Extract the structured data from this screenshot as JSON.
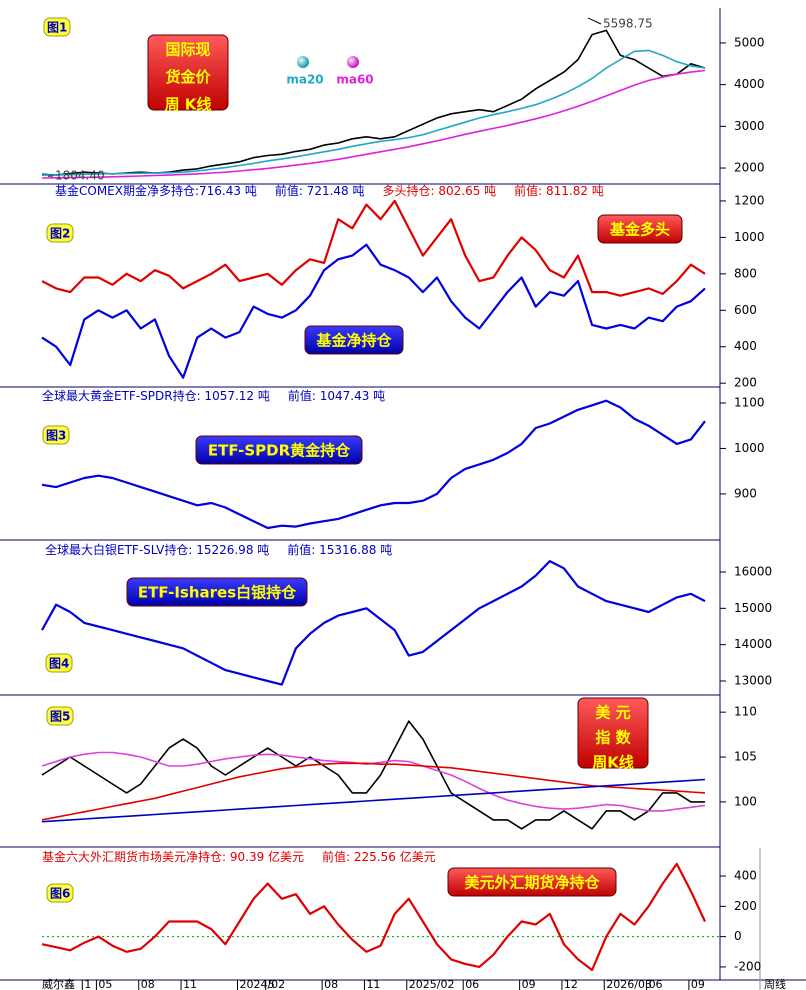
{
  "brand": "威尔鑫",
  "x_axis": {
    "label": "周线",
    "categories": [
      null,
      null,
      null,
      "1",
      "05",
      null,
      null,
      "08",
      null,
      null,
      "11",
      null,
      null,
      null,
      "2024/02",
      null,
      "5",
      null,
      null,
      null,
      "08",
      null,
      null,
      "11",
      null,
      null,
      "2025/02",
      null,
      null,
      null,
      "06",
      null,
      null,
      null,
      "09",
      null,
      null,
      "12",
      null,
      null,
      "2026/03",
      null,
      null,
      "06",
      null,
      null,
      "09",
      null
    ]
  },
  "chart_data": [
    {
      "type": "line",
      "badge": "图1",
      "title_lines": [
        "国际现",
        "货金价",
        "周 K线"
      ],
      "ylim": [
        1665,
        5790
      ],
      "yticks": [
        2000,
        3000,
        4000,
        5000
      ],
      "extremes": {
        "values": [
          5598.75,
          1804.4
        ],
        "value_labels": [
          "5598.75",
          "1804.40"
        ]
      },
      "series": [
        {
          "color": "#000000",
          "values": [
            1850,
            1830,
            1870,
            1900,
            1880,
            1860,
            1880,
            1900,
            1880,
            1900,
            1950,
            1980,
            2050,
            2100,
            2150,
            2250,
            2300,
            2330,
            2400,
            2450,
            2550,
            2600,
            2700,
            2750,
            2700,
            2750,
            2900,
            3050,
            3200,
            3300,
            3350,
            3400,
            3350,
            3500,
            3650,
            3900,
            4100,
            4300,
            4600,
            5200,
            5300,
            4700,
            4600,
            4400,
            4200,
            4250,
            4500,
            4400
          ]
        },
        {
          "name": "ma20",
          "color": "#20a8c8",
          "values": [
            1830,
            1835,
            1840,
            1850,
            1860,
            1865,
            1870,
            1875,
            1880,
            1885,
            1900,
            1930,
            1970,
            2010,
            2060,
            2110,
            2170,
            2220,
            2270,
            2330,
            2390,
            2450,
            2520,
            2580,
            2640,
            2680,
            2730,
            2800,
            2900,
            3000,
            3100,
            3200,
            3280,
            3350,
            3430,
            3520,
            3640,
            3780,
            3950,
            4150,
            4400,
            4600,
            4800,
            4820,
            4700,
            4550,
            4450,
            4400
          ]
        },
        {
          "name": "ma60",
          "color": "#e020e0",
          "values": [
            1760,
            1765,
            1770,
            1775,
            1780,
            1790,
            1800,
            1810,
            1820,
            1830,
            1845,
            1860,
            1880,
            1900,
            1930,
            1960,
            1990,
            2030,
            2070,
            2110,
            2160,
            2210,
            2270,
            2330,
            2390,
            2450,
            2510,
            2580,
            2650,
            2730,
            2810,
            2880,
            2950,
            3020,
            3100,
            3180,
            3270,
            3370,
            3480,
            3600,
            3730,
            3860,
            3990,
            4100,
            4180,
            4250,
            4300,
            4340
          ]
        }
      ]
    },
    {
      "type": "line",
      "badge": "图2",
      "header": [
        {
          "text": "基金COMEX期金净多持仓:716.43  吨",
          "color": "#0000c0"
        },
        {
          "text": "前值: 721.48  吨",
          "color": "#0000c0"
        },
        {
          "text": "多头持仓: 802.65  吨",
          "color": "#e00000"
        },
        {
          "text": "前值: 811.82  吨",
          "color": "#e00000"
        }
      ],
      "ylim": [
        190,
        1260
      ],
      "yticks": [
        200,
        400,
        600,
        800,
        1000,
        1200
      ],
      "series": [
        {
          "name": "基金多头",
          "color": "#e00000",
          "values": [
            760,
            720,
            700,
            780,
            780,
            740,
            800,
            760,
            820,
            790,
            720,
            760,
            800,
            850,
            760,
            780,
            800,
            740,
            820,
            880,
            860,
            1100,
            1050,
            1180,
            1100,
            1200,
            1050,
            900,
            1000,
            1100,
            900,
            760,
            780,
            900,
            1000,
            930,
            820,
            780,
            900,
            700,
            700,
            680,
            700,
            720,
            690,
            760,
            850,
            800
          ]
        },
        {
          "name": "基金净持仓",
          "color": "#0000e0",
          "values": [
            450,
            400,
            300,
            550,
            600,
            560,
            600,
            500,
            550,
            350,
            230,
            450,
            500,
            450,
            480,
            620,
            580,
            560,
            600,
            680,
            820,
            880,
            900,
            960,
            850,
            820,
            780,
            700,
            780,
            650,
            560,
            500,
            600,
            700,
            780,
            620,
            700,
            680,
            760,
            520,
            500,
            520,
            500,
            560,
            540,
            620,
            650,
            720
          ]
        }
      ]
    },
    {
      "type": "line",
      "badge": "图3",
      "header": [
        {
          "text": "全球最大黄金ETF-SPDR持仓: 1057.12 吨",
          "color": "#0000c0"
        },
        {
          "text": "前值:  1047.43 吨",
          "color": "#0000c0"
        }
      ],
      "ylim": [
        803,
        1133
      ],
      "yticks": [
        900,
        1000,
        1100
      ],
      "series": [
        {
          "name": "ETF-SPDR黄金持仓",
          "color": "#0000e0",
          "values": [
            920,
            915,
            925,
            935,
            940,
            935,
            925,
            915,
            905,
            895,
            885,
            875,
            880,
            870,
            855,
            840,
            825,
            830,
            828,
            835,
            840,
            845,
            855,
            865,
            875,
            880,
            880,
            885,
            900,
            935,
            955,
            965,
            975,
            990,
            1010,
            1045,
            1055,
            1070,
            1085,
            1095,
            1105,
            1090,
            1065,
            1050,
            1030,
            1010,
            1020,
            1060
          ]
        }
      ]
    },
    {
      "type": "line",
      "badge": "图4",
      "header": [
        {
          "text": "全球最大白银ETF-SLV持仓: 15226.98 吨",
          "color": "#0000c0"
        },
        {
          "text": "前值: 15316.88 吨",
          "color": "#0000c0"
        }
      ],
      "ylim": [
        12670,
        16880
      ],
      "yticks": [
        13000,
        14000,
        15000,
        16000
      ],
      "series": [
        {
          "name": "ETF-Ishares白银持仓",
          "color": "#0000e0",
          "values": [
            14400,
            15100,
            14900,
            14600,
            14500,
            14400,
            14300,
            14200,
            14100,
            14000,
            13900,
            13700,
            13500,
            13300,
            13200,
            13100,
            13000,
            12900,
            13900,
            14300,
            14600,
            14800,
            14900,
            15000,
            14700,
            14400,
            13700,
            13800,
            14100,
            14400,
            14700,
            15000,
            15200,
            15400,
            15600,
            15900,
            16300,
            16100,
            15600,
            15400,
            15200,
            15100,
            15000,
            14900,
            15100,
            15300,
            15400,
            15200
          ]
        }
      ]
    },
    {
      "type": "line",
      "badge": "图5",
      "title_lines": [
        "美 元",
        "指 数",
        "周K线"
      ],
      "ylim": [
        95.2,
        111.8
      ],
      "yticks": [
        100,
        105,
        110
      ],
      "series": [
        {
          "color": "#000000",
          "values": [
            103,
            104,
            105,
            104,
            103,
            102,
            101,
            102,
            104,
            106,
            107,
            106,
            104,
            103,
            104,
            105,
            106,
            105,
            104,
            105,
            104,
            103,
            101,
            101,
            103,
            106,
            109,
            107,
            104,
            101,
            100,
            99,
            98,
            98,
            97,
            98,
            98,
            99,
            98,
            97,
            99,
            99,
            98,
            99,
            101,
            101,
            100,
            100
          ]
        },
        {
          "color": "#e040e0",
          "values": [
            104,
            104.5,
            105,
            105.3,
            105.5,
            105.5,
            105.3,
            105,
            104.5,
            104,
            104,
            104.2,
            104.5,
            104.8,
            105,
            105.2,
            105.3,
            105.2,
            105,
            104.8,
            104.6,
            104.5,
            104.4,
            104.2,
            104.4,
            104.6,
            104.5,
            104,
            103.5,
            103,
            102.3,
            101.5,
            100.8,
            100.2,
            99.8,
            99.5,
            99.3,
            99.2,
            99.3,
            99.5,
            99.7,
            99.6,
            99.3,
            99,
            99,
            99.2,
            99.4,
            99.6
          ]
        },
        {
          "color": "#e00000",
          "values": [
            98,
            98.3,
            98.6,
            98.9,
            99.2,
            99.5,
            99.8,
            100.1,
            100.4,
            100.8,
            101.2,
            101.6,
            102,
            102.4,
            102.8,
            103.1,
            103.4,
            103.7,
            103.9,
            104.1,
            104.2,
            104.3,
            104.3,
            104.3,
            104.2,
            104.2,
            104.1,
            104,
            103.9,
            103.8,
            103.6,
            103.4,
            103.2,
            103,
            102.8,
            102.6,
            102.4,
            102.2,
            102,
            101.8,
            101.7,
            101.6,
            101.5,
            101.4,
            101.3,
            101.2,
            101.1,
            101
          ]
        },
        {
          "color": "#0000c0",
          "values": [
            97.8,
            97.9,
            98,
            98.1,
            98.2,
            98.3,
            98.4,
            98.5,
            98.6,
            98.7,
            98.8,
            98.9,
            99,
            99.1,
            99.2,
            99.3,
            99.4,
            99.5,
            99.6,
            99.7,
            99.8,
            99.9,
            100,
            100.1,
            100.2,
            100.3,
            100.4,
            100.5,
            100.6,
            100.7,
            100.8,
            100.9,
            101,
            101.1,
            101.2,
            101.3,
            101.4,
            101.5,
            101.6,
            101.7,
            101.8,
            101.9,
            102,
            102.1,
            102.2,
            102.3,
            102.4,
            102.5
          ]
        }
      ]
    },
    {
      "type": "line",
      "badge": "图6",
      "zero_line": true,
      "header": [
        {
          "text": "基金六大外汇期货市场美元净持仓: 90.39  亿美元",
          "color": "#e00000"
        },
        {
          "text": "前值: 225.56  亿美元",
          "color": "#e00000"
        }
      ],
      "ylim": [
        -273,
        585
      ],
      "yticks": [
        -200,
        0,
        200,
        400
      ],
      "series": [
        {
          "name": "美元外汇期货净持仓",
          "color": "#e00000",
          "values": [
            -50,
            -70,
            -90,
            -40,
            0,
            -60,
            -100,
            -80,
            0,
            100,
            100,
            100,
            50,
            -50,
            100,
            250,
            350,
            250,
            280,
            150,
            200,
            80,
            -20,
            -100,
            -60,
            150,
            250,
            100,
            -50,
            -150,
            -180,
            -200,
            -120,
            0,
            100,
            80,
            150,
            -50,
            -150,
            -220,
            0,
            150,
            80,
            200,
            350,
            480,
            300,
            100
          ]
        }
      ]
    }
  ]
}
